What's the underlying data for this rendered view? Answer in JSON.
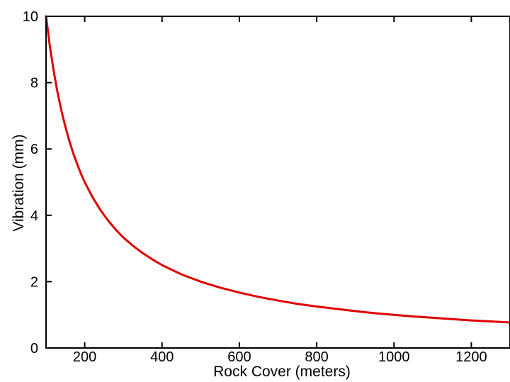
{
  "chart_data": {
    "type": "line",
    "title": "",
    "xlabel": "Rock Cover (meters)",
    "ylabel": "Vibration (mm)",
    "xlim": [
      100,
      1300
    ],
    "ylim": [
      0,
      10
    ],
    "xticks": [
      200,
      400,
      600,
      800,
      1000,
      1200
    ],
    "yticks": [
      0,
      2,
      4,
      6,
      8,
      10
    ],
    "grid": false,
    "legend": "none",
    "series": [
      {
        "color": "#e00000",
        "x": [
          100,
          110,
          120,
          130,
          140,
          150,
          160,
          170,
          180,
          190,
          200,
          220,
          240,
          260,
          280,
          300,
          325,
          350,
          375,
          400,
          450,
          500,
          550,
          600,
          650,
          700,
          750,
          800,
          850,
          900,
          950,
          1000,
          1050,
          1100,
          1150,
          1200,
          1250,
          1300
        ],
        "y": [
          10.0,
          9.09,
          8.33,
          7.69,
          7.14,
          6.67,
          6.25,
          5.88,
          5.56,
          5.26,
          5.0,
          4.55,
          4.17,
          3.85,
          3.57,
          3.33,
          3.08,
          2.86,
          2.67,
          2.5,
          2.22,
          2.0,
          1.82,
          1.67,
          1.54,
          1.43,
          1.33,
          1.25,
          1.18,
          1.11,
          1.05,
          1.0,
          0.95,
          0.91,
          0.87,
          0.83,
          0.8,
          0.77
        ]
      }
    ]
  }
}
